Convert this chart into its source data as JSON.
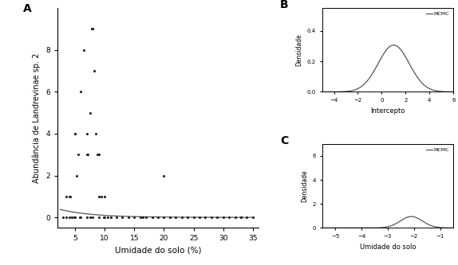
{
  "panel_A_label": "A",
  "panel_B_label": "B",
  "panel_C_label": "C",
  "scatter_x": [
    3.5,
    4.0,
    4.2,
    4.8,
    5.0,
    5.0,
    5.2,
    5.5,
    5.8,
    6.0,
    6.5,
    7.0,
    7.0,
    7.2,
    7.5,
    7.8,
    8.0,
    8.0,
    8.2,
    8.5,
    8.8,
    9.0,
    9.0,
    9.5,
    9.8,
    10.0,
    10.5,
    16.5,
    20.0,
    33.0,
    3.0,
    3.5,
    4.0,
    4.5,
    5.0,
    6.0,
    7.0,
    7.5,
    8.0,
    9.0,
    10.0,
    11.0,
    12.0,
    13.0,
    14.0,
    15.0,
    16.0,
    17.0,
    18.0,
    19.0,
    20.0,
    21.0,
    22.0,
    23.0,
    24.0,
    25.0,
    26.0,
    27.0,
    28.0,
    29.0,
    30.0,
    31.0,
    32.0,
    33.0,
    34.0,
    35.0
  ],
  "scatter_y": [
    1.0,
    1.0,
    1.0,
    0.0,
    4.0,
    4.0,
    2.0,
    3.0,
    0.0,
    6.0,
    8.0,
    4.0,
    3.0,
    3.0,
    5.0,
    9.0,
    9.0,
    9.0,
    7.0,
    4.0,
    3.0,
    1.0,
    3.0,
    1.0,
    0.0,
    1.0,
    0.0,
    0.0,
    2.0,
    0.0,
    0.0,
    0.0,
    0.0,
    0.0,
    0.0,
    0.0,
    0.0,
    0.0,
    0.0,
    0.0,
    0.0,
    0.0,
    0.0,
    0.0,
    0.0,
    0.0,
    0.0,
    0.0,
    0.0,
    0.0,
    0.0,
    0.0,
    0.0,
    0.0,
    0.0,
    0.0,
    0.0,
    0.0,
    0.0,
    0.0,
    0.0,
    0.0,
    0.0,
    0.0,
    0.0,
    0.0
  ],
  "curve_x_start": 2.5,
  "curve_x_end": 35.0,
  "curve_y0": 0.38,
  "curve_decay": 0.18,
  "xlim_A": [
    2,
    36
  ],
  "ylim_A": [
    -0.5,
    10
  ],
  "xticks_A": [
    5,
    10,
    15,
    20,
    25,
    30,
    35
  ],
  "yticks_A": [
    0,
    2,
    4,
    6,
    8
  ],
  "xlabel_A": "Umidade do solo (%)",
  "ylabel_A": "Abundância de Landrevinae sp. 2",
  "xlim_B": [
    -5,
    6
  ],
  "ylim_B": [
    0,
    0.55
  ],
  "xticks_B": [
    -4,
    -2,
    0,
    2,
    4,
    6
  ],
  "yticks_B": [
    0.0,
    0.2,
    0.4
  ],
  "xlabel_B": "Intercepto",
  "ylabel_B": "Densidade",
  "intercept_mean": 1.0,
  "intercept_std": 1.3,
  "xlim_C": [
    -5.5,
    -0.5
  ],
  "ylim_C": [
    0,
    7
  ],
  "xticks_C": [
    -5,
    -4,
    -3,
    -2,
    -1
  ],
  "yticks_C": [
    0,
    2,
    4,
    6
  ],
  "xlabel_C": "Umidade do solo",
  "ylabel_C": "Densidade",
  "soil_mean": -2.1,
  "soil_std": 0.42,
  "legend_label": "MCMC",
  "line_color": "#555555",
  "scatter_color": "#222222",
  "bg_color": "#ffffff",
  "font_family": "DejaVu Sans"
}
